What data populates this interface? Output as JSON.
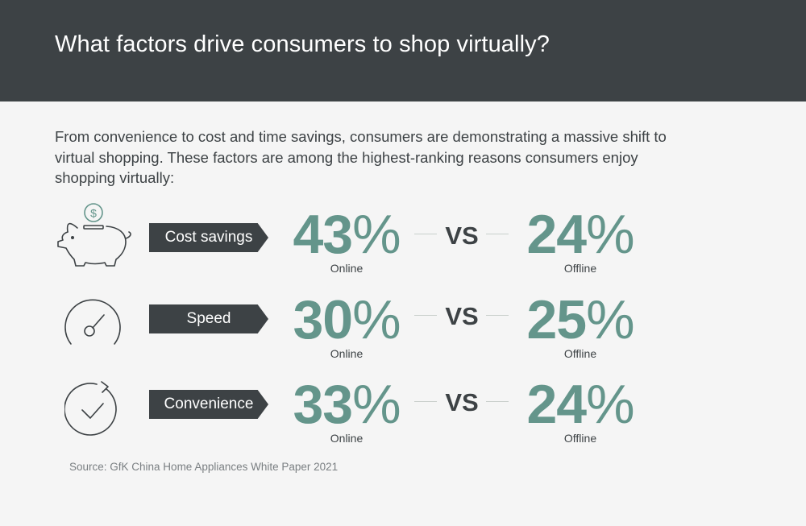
{
  "header": {
    "title": "What factors drive consumers to shop virtually?"
  },
  "intro": "From convenience to cost and time savings, consumers are demonstrating a massive shift to virtual shopping. These factors are among the highest-ranking reasons consumers enjoy shopping virtually:",
  "vs_label": "VS",
  "rows": [
    {
      "icon": "piggy-bank-icon",
      "label": "Cost savings",
      "online": "43",
      "offline": "24",
      "online_caption": "Online",
      "offline_caption": "Offline",
      "pct": "%"
    },
    {
      "icon": "speedometer-icon",
      "label": "Speed",
      "online": "30",
      "offline": "25",
      "online_caption": "Online",
      "offline_caption": "Offline",
      "pct": "%"
    },
    {
      "icon": "checkmark-cycle-icon",
      "label": "Convenience",
      "online": "33",
      "offline": "24",
      "online_caption": "Online",
      "offline_caption": "Offline",
      "pct": "%"
    }
  ],
  "source": "Source: GfK China Home Appliances White Paper 2021",
  "colors": {
    "header_bg": "#3d4245",
    "accent": "#64958b",
    "text": "#3d4245",
    "background": "#f5f5f5"
  }
}
